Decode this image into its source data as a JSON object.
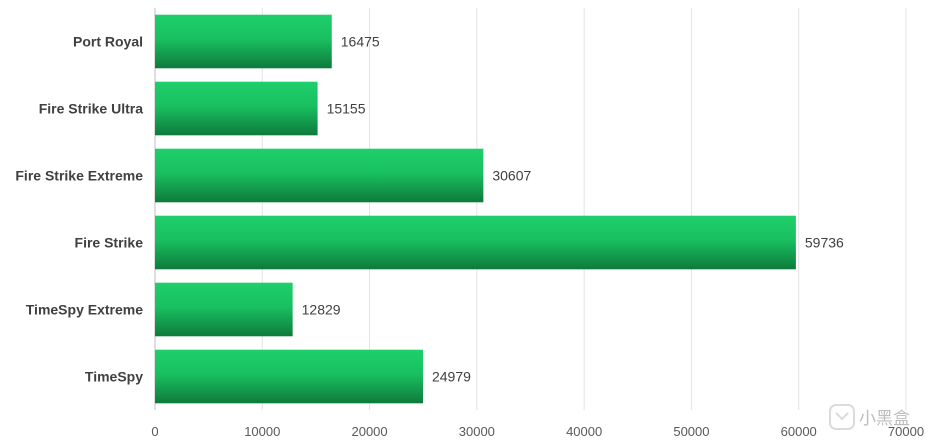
{
  "chart_data": {
    "type": "bar",
    "orientation": "horizontal",
    "categories": [
      "Port Royal",
      "Fire Strike Ultra",
      "Fire Strike Extreme",
      "Fire Strike",
      "TimeSpy Extreme",
      "TimeSpy"
    ],
    "values": [
      16475,
      15155,
      30607,
      59736,
      12829,
      24979
    ],
    "value_labels": [
      "16475",
      "15155",
      "30607",
      "59736",
      "12829",
      "24979"
    ],
    "xlim": [
      0,
      70000
    ],
    "xticks": [
      0,
      10000,
      20000,
      30000,
      40000,
      50000,
      60000,
      70000
    ],
    "xtick_labels": [
      "0",
      "10000",
      "20000",
      "30000",
      "40000",
      "50000",
      "60000",
      "70000"
    ],
    "title": "",
    "xlabel": "",
    "ylabel": "",
    "grid": "vertical",
    "legend": "none",
    "bar_color_top": "#1ecf6a",
    "bar_color_bottom": "#0e7a3c"
  },
  "watermark": {
    "text": "小黑盒"
  }
}
